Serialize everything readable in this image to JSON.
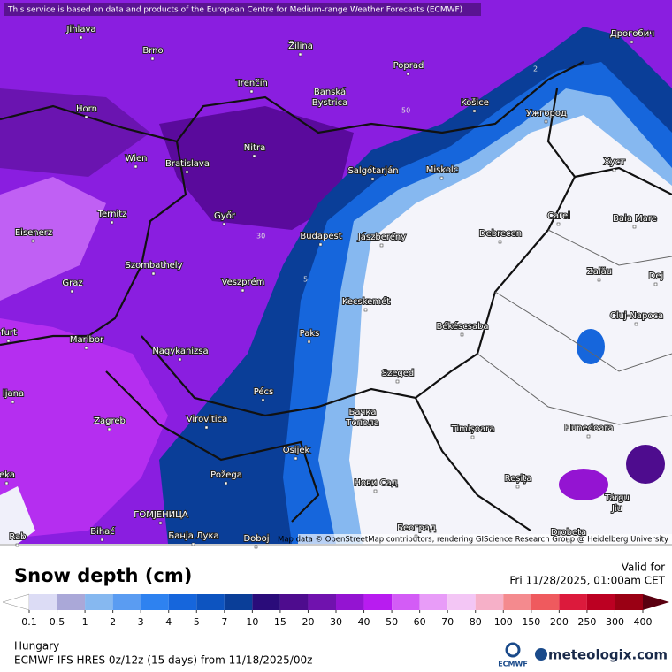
{
  "header": {
    "attribution": "This service is based on data and products of the European Centre for Medium-range Weather Forecasts (ECMWF)"
  },
  "map": {
    "credits": "Map data © OpenStreetMap contributors, rendering GIScience Research Group @ Heidelberg University",
    "cities": [
      "Jihlava",
      "Brno",
      "Žilina",
      "Poprad",
      "Дрогобич",
      "Trenčín",
      [
        "Banská",
        "Bystrica"
      ],
      "Košice",
      "Ужгород",
      "Horn",
      "Wien",
      "Bratislava",
      "Nitra",
      "Salgótarján",
      "Miskolc",
      "Хуст",
      "Ternitz",
      "Győr",
      "Carei",
      "Baia Mare",
      "Eisenerz",
      "Budapest",
      "Jászberény",
      "Debrecen",
      "Szombathely",
      "Zalău",
      "Graz",
      "Veszprém",
      "Dej",
      "Kecskemét",
      "Cluj-Napoca",
      "Békéscsaba",
      "Paks",
      "Maribor",
      "Nagykanizsa",
      "Szeged",
      "Pécs",
      "Virovitica",
      "Zagreb",
      [
        "Бачка",
        "Топола"
      ],
      "Timișoara",
      "Hunedoara",
      "Osijek",
      "Požega",
      "Reșița",
      "Нови Сад",
      "ГОМЈЕНИЦА",
      "Банја Лука",
      "Bihać",
      "Doboj",
      "Београд",
      [
        "Târgu",
        "Jiu"
      ],
      "Drobeta",
      "furt",
      "ljana",
      "eka",
      "Rab"
    ],
    "contour_labels": [
      "50",
      "30",
      "5",
      "2"
    ]
  },
  "legend": {
    "title": "Snow depth (cm)",
    "valid_label": "Valid for",
    "valid_time": "Fri 11/28/2025, 01:00am CET",
    "ticks": [
      0.1,
      0.5,
      1,
      2,
      3,
      4,
      5,
      7,
      10,
      15,
      20,
      30,
      40,
      50,
      60,
      70,
      80,
      100,
      150,
      200,
      250,
      300,
      400
    ],
    "colors": [
      "#ffffff",
      "#dcdcf5",
      "#aaa8d8",
      "#86b8f0",
      "#5a9cf2",
      "#2e82f0",
      "#1666dc",
      "#0d54c0",
      "#0a3e98",
      "#2a0c7a",
      "#4e0c8e",
      "#7012ae",
      "#9414d2",
      "#b81cf0",
      "#d35cf6",
      "#e89cf8",
      "#f3c6f5",
      "#f6b0c8",
      "#f48a8e",
      "#ef5a5e",
      "#dc1a3c",
      "#bc0022",
      "#9a0014",
      "#5a0010"
    ],
    "region": "Hungary",
    "model": "ECMWF IFS HRES 0z/12z (15 days) from  11/18/2025/00z",
    "logo_left": "ECMWF",
    "logo_right": "meteologix.com"
  }
}
